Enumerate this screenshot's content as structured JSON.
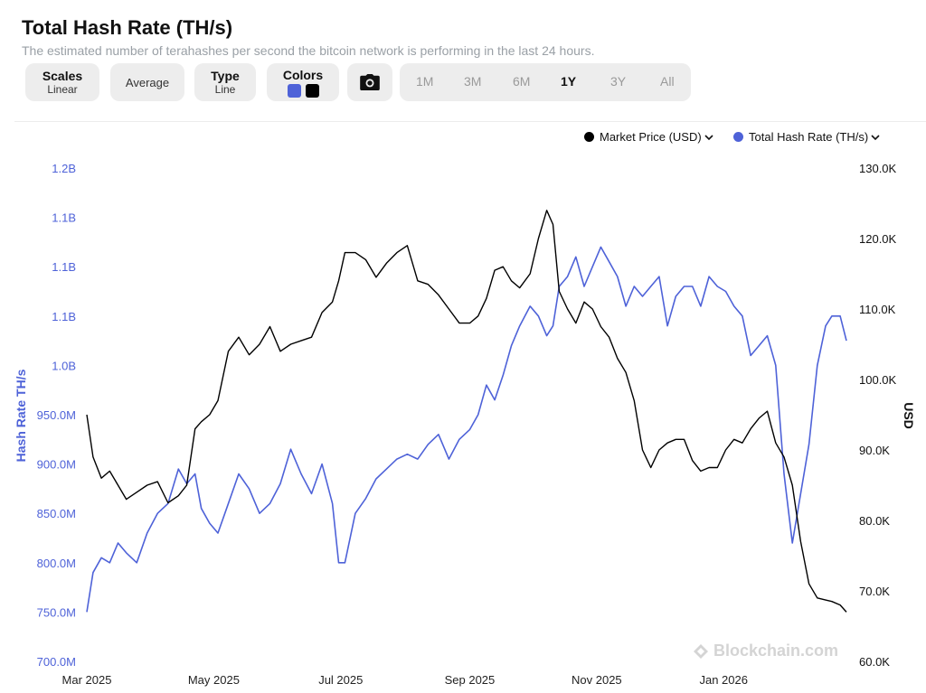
{
  "header": {
    "title": "Total Hash Rate (TH/s)",
    "subtitle": "The estimated number of terahashes per second the bitcoin network is performing in the last 24 hours."
  },
  "toolbar": {
    "scales": {
      "label": "Scales",
      "value": "Linear"
    },
    "average": {
      "label": "Average"
    },
    "type": {
      "label": "Type",
      "value": "Line"
    },
    "colors": {
      "label": "Colors",
      "swatches": [
        "#4e62d8",
        "#000000"
      ]
    },
    "camera_icon": "camera-icon",
    "ranges": [
      "1M",
      "3M",
      "6M",
      "1Y",
      "3Y",
      "All"
    ],
    "active_range": "1Y"
  },
  "legend": {
    "items": [
      {
        "label": "Market Price (USD)",
        "color": "#000000"
      },
      {
        "label": "Total Hash Rate (TH/s)",
        "color": "#4e62d8"
      }
    ]
  },
  "watermark": "Blockchain.com",
  "chart_data": {
    "type": "line",
    "xlabel": "",
    "x_ticks": [
      "Mar 2025",
      "May 2025",
      "Jul 2025",
      "Sep 2025",
      "Nov 2025",
      "Jan 2026"
    ],
    "y_left": {
      "label": "Hash Rate TH/s",
      "ticks": [
        "1.2B",
        "1.1B",
        "1.1B",
        "1.1B",
        "1.0B",
        "950.0M",
        "900.0M",
        "850.0M",
        "800.0M",
        "750.0M",
        "700.0M"
      ],
      "range": [
        700000000,
        1200000000
      ]
    },
    "y_right": {
      "label": "USD",
      "ticks": [
        "130.0K",
        "120.0K",
        "110.0K",
        "100.0K",
        "90.0K",
        "80.0K",
        "70.0K",
        "60.0K"
      ],
      "range": [
        60000,
        130000
      ]
    },
    "series": [
      {
        "name": "Total Hash Rate (TH/s)",
        "axis": "left",
        "color": "#4e62d8",
        "x": [
          "2025-03-01",
          "2025-03-04",
          "2025-03-08",
          "2025-03-12",
          "2025-03-16",
          "2025-03-20",
          "2025-03-25",
          "2025-03-30",
          "2025-04-04",
          "2025-04-09",
          "2025-04-14",
          "2025-04-18",
          "2025-04-22",
          "2025-04-25",
          "2025-04-29",
          "2025-05-03",
          "2025-05-08",
          "2025-05-13",
          "2025-05-18",
          "2025-05-23",
          "2025-05-28",
          "2025-06-02",
          "2025-06-07",
          "2025-06-12",
          "2025-06-17",
          "2025-06-22",
          "2025-06-27",
          "2025-06-30",
          "2025-07-03",
          "2025-07-08",
          "2025-07-13",
          "2025-07-18",
          "2025-07-23",
          "2025-07-28",
          "2025-08-02",
          "2025-08-07",
          "2025-08-12",
          "2025-08-17",
          "2025-08-22",
          "2025-08-27",
          "2025-09-01",
          "2025-09-05",
          "2025-09-09",
          "2025-09-13",
          "2025-09-17",
          "2025-09-21",
          "2025-09-25",
          "2025-09-30",
          "2025-10-04",
          "2025-10-08",
          "2025-10-11",
          "2025-10-14",
          "2025-10-18",
          "2025-10-22",
          "2025-10-26",
          "2025-10-30",
          "2025-11-03",
          "2025-11-07",
          "2025-11-11",
          "2025-11-15",
          "2025-11-19",
          "2025-11-23",
          "2025-11-27",
          "2025-12-01",
          "2025-12-05",
          "2025-12-09",
          "2025-12-13",
          "2025-12-17",
          "2025-12-21",
          "2025-12-25",
          "2025-12-29",
          "2026-01-02",
          "2026-01-06",
          "2026-01-10",
          "2026-01-14",
          "2026-01-18",
          "2026-01-22",
          "2026-01-26",
          "2026-01-30",
          "2026-02-03",
          "2026-02-07",
          "2026-02-11",
          "2026-02-15",
          "2026-02-19",
          "2026-02-22",
          "2026-02-26",
          "2026-03-01"
        ],
        "values": [
          750000000,
          790000000,
          805000000,
          800000000,
          820000000,
          810000000,
          800000000,
          830000000,
          850000000,
          860000000,
          895000000,
          880000000,
          890000000,
          855000000,
          840000000,
          830000000,
          860000000,
          890000000,
          875000000,
          850000000,
          860000000,
          880000000,
          915000000,
          890000000,
          870000000,
          900000000,
          860000000,
          800000000,
          800000000,
          850000000,
          865000000,
          885000000,
          895000000,
          905000000,
          910000000,
          905000000,
          920000000,
          930000000,
          905000000,
          925000000,
          935000000,
          950000000,
          980000000,
          965000000,
          990000000,
          1020000000,
          1040000000,
          1060000000,
          1050000000,
          1030000000,
          1040000000,
          1080000000,
          1090000000,
          1110000000,
          1080000000,
          1100000000,
          1120000000,
          1105000000,
          1090000000,
          1060000000,
          1080000000,
          1070000000,
          1080000000,
          1090000000,
          1040000000,
          1070000000,
          1080000000,
          1080000000,
          1060000000,
          1090000000,
          1080000000,
          1075000000,
          1060000000,
          1050000000,
          1010000000,
          1020000000,
          1030000000,
          1000000000,
          890000000,
          820000000,
          870000000,
          920000000,
          1000000000,
          1040000000,
          1050000000,
          1050000000,
          1025000000
        ]
      },
      {
        "name": "Market Price (USD)",
        "axis": "right",
        "color": "#000000",
        "x": [
          "2025-03-01",
          "2025-03-04",
          "2025-03-08",
          "2025-03-12",
          "2025-03-16",
          "2025-03-20",
          "2025-03-25",
          "2025-03-30",
          "2025-04-04",
          "2025-04-09",
          "2025-04-14",
          "2025-04-18",
          "2025-04-22",
          "2025-04-25",
          "2025-04-29",
          "2025-05-03",
          "2025-05-08",
          "2025-05-13",
          "2025-05-18",
          "2025-05-23",
          "2025-05-28",
          "2025-06-02",
          "2025-06-07",
          "2025-06-12",
          "2025-06-17",
          "2025-06-22",
          "2025-06-27",
          "2025-06-30",
          "2025-07-03",
          "2025-07-08",
          "2025-07-13",
          "2025-07-18",
          "2025-07-23",
          "2025-07-28",
          "2025-08-02",
          "2025-08-07",
          "2025-08-12",
          "2025-08-17",
          "2025-08-22",
          "2025-08-27",
          "2025-09-01",
          "2025-09-05",
          "2025-09-09",
          "2025-09-13",
          "2025-09-17",
          "2025-09-21",
          "2025-09-25",
          "2025-09-30",
          "2025-10-04",
          "2025-10-08",
          "2025-10-11",
          "2025-10-14",
          "2025-10-18",
          "2025-10-22",
          "2025-10-26",
          "2025-10-30",
          "2025-11-03",
          "2025-11-07",
          "2025-11-11",
          "2025-11-15",
          "2025-11-19",
          "2025-11-23",
          "2025-11-27",
          "2025-12-01",
          "2025-12-05",
          "2025-12-09",
          "2025-12-13",
          "2025-12-17",
          "2025-12-21",
          "2025-12-25",
          "2025-12-29",
          "2026-01-02",
          "2026-01-06",
          "2026-01-10",
          "2026-01-14",
          "2026-01-18",
          "2026-01-22",
          "2026-01-26",
          "2026-01-30",
          "2026-02-03",
          "2026-02-07",
          "2026-02-11",
          "2026-02-15",
          "2026-02-19",
          "2026-02-22",
          "2026-02-26",
          "2026-03-01"
        ],
        "values": [
          95000,
          89000,
          86000,
          87000,
          85000,
          83000,
          84000,
          85000,
          85500,
          82500,
          83500,
          85000,
          93000,
          94000,
          95000,
          97000,
          104000,
          106000,
          103500,
          105000,
          107500,
          104000,
          105000,
          105500,
          106000,
          109500,
          111000,
          114000,
          118000,
          118000,
          117000,
          114500,
          116500,
          118000,
          119000,
          114000,
          113500,
          112000,
          110000,
          108000,
          108000,
          109000,
          111500,
          115500,
          116000,
          114000,
          113000,
          115000,
          120000,
          124000,
          122000,
          112500,
          110000,
          108000,
          111000,
          110000,
          107500,
          106000,
          103000,
          101000,
          97000,
          90000,
          87500,
          90000,
          91000,
          91500,
          91500,
          88500,
          87000,
          87500,
          87500,
          90000,
          91500,
          91000,
          93000,
          94500,
          95500,
          91000,
          89000,
          85000,
          77000,
          71000,
          69000,
          68700,
          68500,
          68000,
          67000
        ]
      }
    ]
  }
}
